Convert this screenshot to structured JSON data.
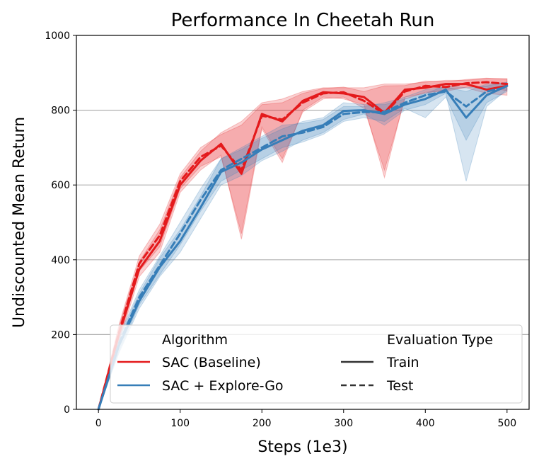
{
  "chart_data": {
    "type": "line",
    "title": "Performance In Cheetah Run",
    "xlabel": "Steps (1e3)",
    "ylabel": "Undiscounted Mean Return",
    "xlim": [
      -27,
      527
    ],
    "ylim": [
      0,
      1000
    ],
    "xticks": [
      0,
      100,
      200,
      300,
      400,
      500
    ],
    "yticks": [
      0,
      200,
      400,
      600,
      800,
      1000
    ],
    "grid": "horizontal",
    "legend": {
      "placement": "bottom-right",
      "algorithm_header": "Algorithm",
      "eval_header": "Evaluation Type",
      "algorithms": [
        {
          "label": "SAC (Baseline)",
          "color": "#e41a1c"
        },
        {
          "label": "SAC + Explore-Go",
          "color": "#377eb8"
        }
      ],
      "eval_types": [
        {
          "label": "Train",
          "style": "solid"
        },
        {
          "label": "Test",
          "style": "dashed"
        }
      ]
    },
    "x": [
      0,
      25,
      50,
      75,
      100,
      125,
      150,
      175,
      200,
      225,
      250,
      275,
      300,
      325,
      350,
      375,
      400,
      425,
      450,
      475,
      500
    ],
    "series": [
      {
        "name": "SAC (Baseline) Train",
        "color": "#e41a1c",
        "dash": "solid",
        "values": [
          0,
          200,
          375,
          450,
          600,
          665,
          710,
          630,
          790,
          770,
          825,
          848,
          845,
          835,
          793,
          855,
          860,
          870,
          870,
          855,
          865
        ],
        "lower": [
          0,
          180,
          355,
          420,
          580,
          640,
          680,
          455,
          750,
          660,
          800,
          835,
          830,
          815,
          620,
          835,
          845,
          855,
          860,
          845,
          840
        ],
        "upper": [
          0,
          220,
          395,
          480,
          620,
          690,
          740,
          770,
          820,
          830,
          850,
          860,
          860,
          860,
          870,
          870,
          875,
          880,
          880,
          885,
          885
        ]
      },
      {
        "name": "SAC (Baseline) Test",
        "color": "#e41a1c",
        "dash": "dashed",
        "values": [
          0,
          205,
          390,
          465,
          610,
          675,
          705,
          640,
          785,
          775,
          820,
          845,
          848,
          825,
          790,
          850,
          865,
          862,
          872,
          875,
          870
        ],
        "lower": [
          0,
          185,
          370,
          435,
          590,
          650,
          675,
          470,
          755,
          670,
          795,
          830,
          835,
          805,
          640,
          830,
          848,
          850,
          862,
          862,
          852
        ],
        "upper": [
          0,
          225,
          410,
          495,
          630,
          700,
          735,
          760,
          815,
          820,
          845,
          858,
          862,
          850,
          865,
          866,
          878,
          876,
          882,
          886,
          882
        ]
      },
      {
        "name": "SAC + Explore-Go Train",
        "color": "#377eb8",
        "dash": "solid",
        "values": [
          0,
          170,
          290,
          380,
          450,
          540,
          635,
          660,
          695,
          720,
          745,
          760,
          798,
          800,
          790,
          815,
          830,
          855,
          780,
          840,
          865
        ],
        "lower": [
          0,
          150,
          270,
          355,
          420,
          510,
          600,
          625,
          665,
          690,
          720,
          740,
          775,
          790,
          760,
          800,
          815,
          845,
          610,
          810,
          855
        ],
        "upper": [
          0,
          190,
          310,
          405,
          480,
          570,
          670,
          695,
          725,
          750,
          770,
          780,
          820,
          815,
          815,
          830,
          845,
          865,
          860,
          865,
          875
        ]
      },
      {
        "name": "SAC + Explore-Go Test",
        "color": "#377eb8",
        "dash": "dashed",
        "values": [
          0,
          175,
          300,
          385,
          470,
          560,
          640,
          670,
          700,
          730,
          740,
          755,
          790,
          795,
          795,
          820,
          840,
          850,
          810,
          850,
          862
        ],
        "lower": [
          0,
          155,
          280,
          360,
          440,
          530,
          610,
          640,
          670,
          700,
          715,
          735,
          770,
          780,
          770,
          805,
          780,
          835,
          720,
          820,
          850
        ],
        "upper": [
          0,
          195,
          320,
          410,
          500,
          590,
          670,
          700,
          730,
          760,
          765,
          775,
          810,
          810,
          820,
          835,
          855,
          862,
          850,
          870,
          874
        ]
      }
    ]
  }
}
